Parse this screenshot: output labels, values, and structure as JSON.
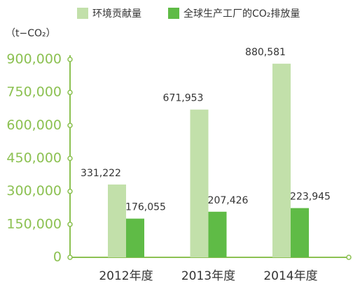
{
  "chart_data": {
    "type": "bar",
    "unit_label": "（t−CO₂）",
    "categories": [
      "2012年度",
      "2013年度",
      "2014年度"
    ],
    "series": [
      {
        "name": "环境贡献量",
        "color": "#c2e0aa",
        "values": [
          331222,
          671953,
          880581
        ],
        "value_labels": [
          "331,222",
          "671,953",
          "880,581"
        ]
      },
      {
        "name": "全球生产工厂的CO₂排放量",
        "color": "#5fbb46",
        "values": [
          176055,
          207426,
          223945
        ],
        "value_labels": [
          "176,055",
          "207,426",
          "223,945"
        ]
      }
    ],
    "ylim": [
      0,
      900000
    ],
    "yticks": [
      0,
      {
        "value": 150000,
        "label": "150,000"
      },
      {
        "value": 300000,
        "label": "300,000"
      },
      {
        "value": 450000,
        "label": "450,000"
      },
      {
        "value": 600000,
        "label": "600,000"
      },
      {
        "value": 750000,
        "label": "750,000"
      },
      {
        "value": 900000,
        "label": "900,000"
      }
    ],
    "axis_color": "#8cc152"
  }
}
